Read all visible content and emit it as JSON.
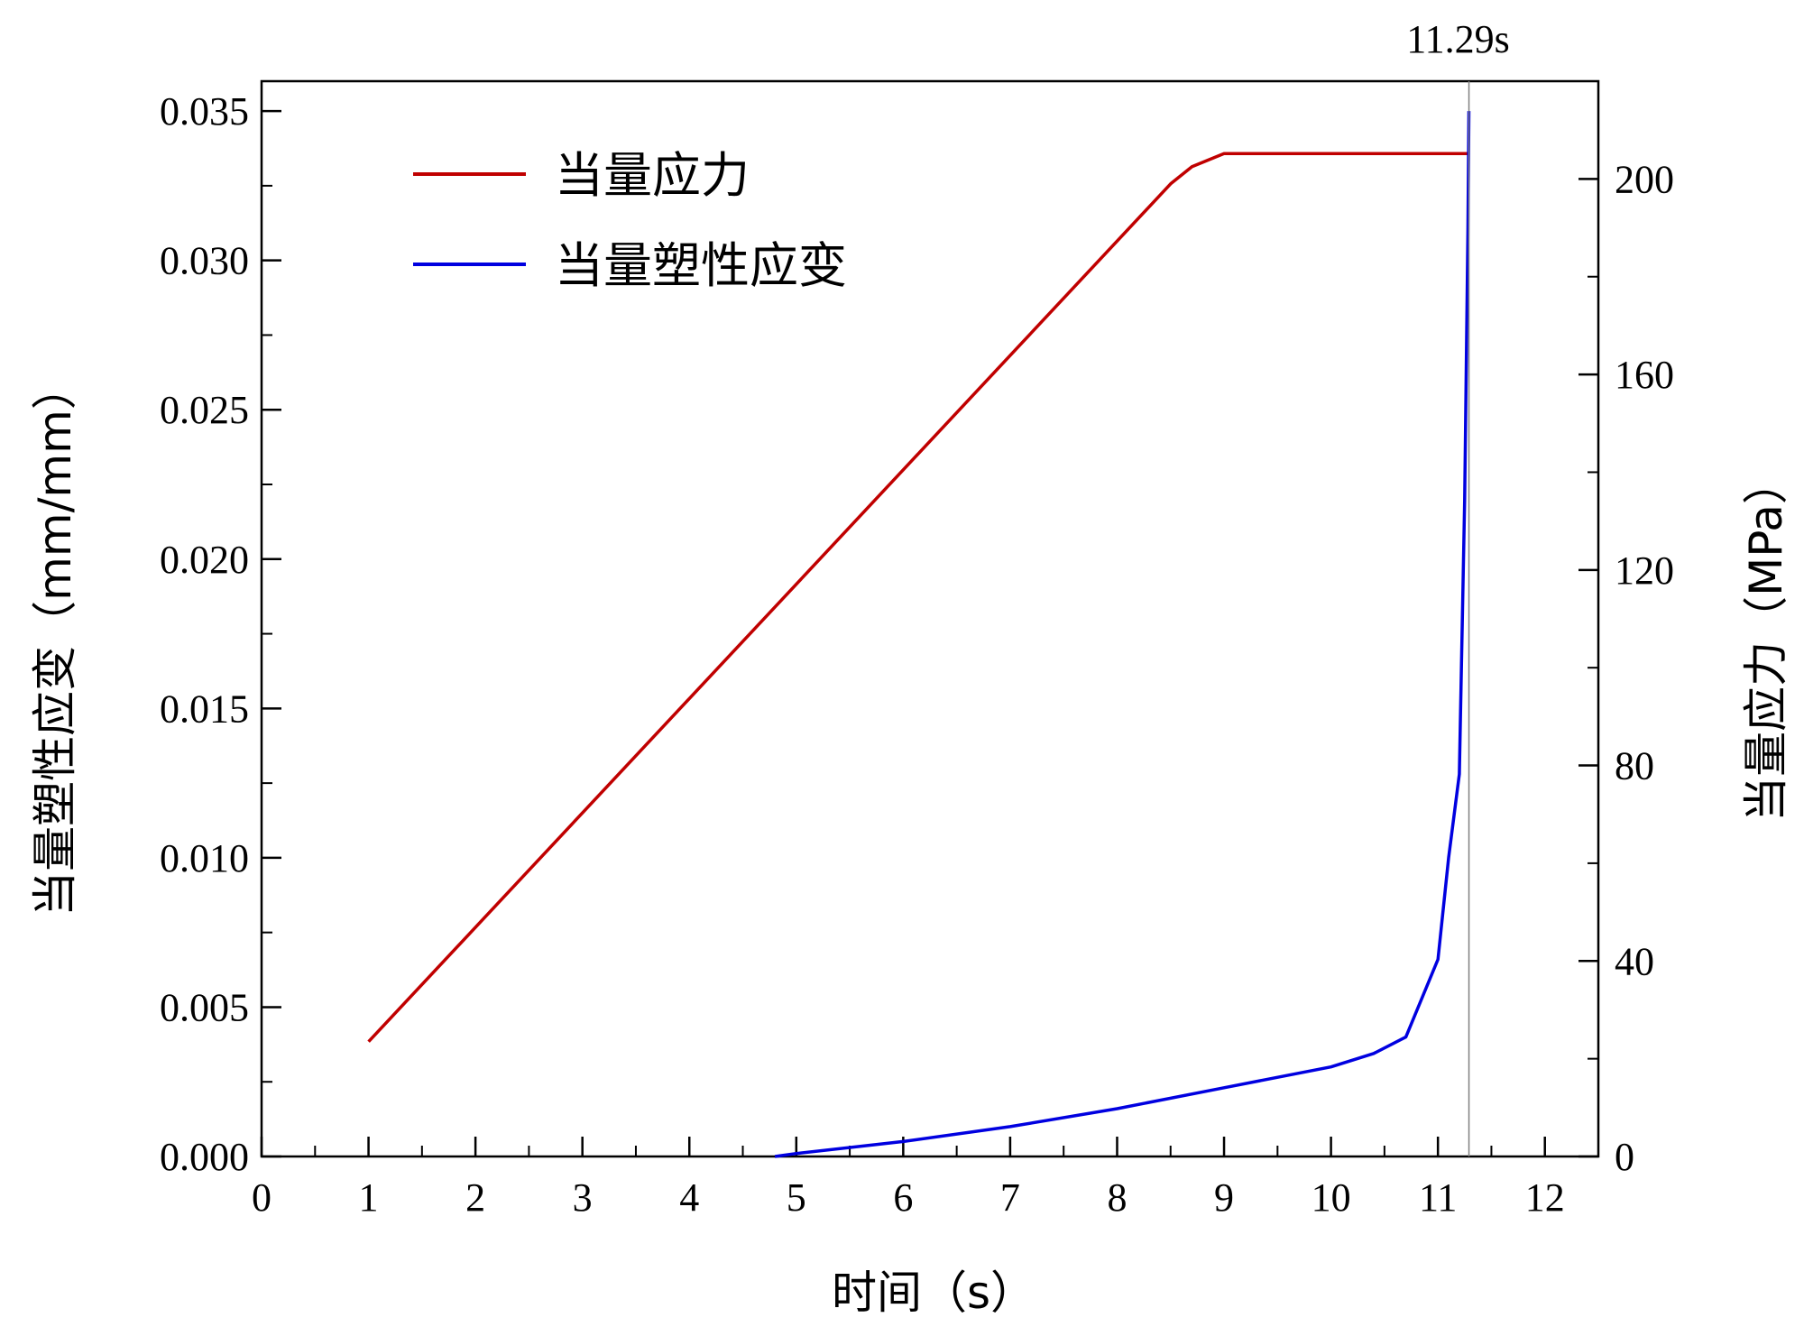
{
  "chart_data": {
    "type": "line",
    "xlabel": "时间（s）",
    "ylabel_left": "当量塑性应变（mm/mm）",
    "ylabel_right": "当量应力（MPa）",
    "xlim": [
      0,
      12.5
    ],
    "ylim_left": [
      0,
      0.036
    ],
    "ylim_right": [
      0,
      220
    ],
    "x_ticks": [
      "0",
      "1",
      "2",
      "3",
      "4",
      "5",
      "6",
      "7",
      "8",
      "9",
      "10",
      "11",
      "12"
    ],
    "y_left_ticks": [
      "0.000",
      "0.005",
      "0.010",
      "0.015",
      "0.020",
      "0.025",
      "0.030",
      "0.035"
    ],
    "y_right_ticks": [
      "0",
      "40",
      "80",
      "120",
      "160",
      "200"
    ],
    "legend_position": "top-left",
    "grid": false,
    "annotation": {
      "label": "11.29s",
      "x": 11.29
    },
    "series": [
      {
        "name": "当量应力",
        "axis": "right",
        "color": "#c00000",
        "x": [
          1,
          8.5,
          8.7,
          9.0,
          11.29
        ],
        "y": [
          23.5,
          199,
          202.5,
          205.2,
          205.2
        ]
      },
      {
        "name": "当量塑性应变",
        "axis": "left",
        "color": "#0000e0",
        "x": [
          4.8,
          5.0,
          6.0,
          7.0,
          8.0,
          9.0,
          10.0,
          10.4,
          10.7,
          11.0,
          11.1,
          11.2,
          11.25,
          11.28,
          11.29
        ],
        "y": [
          0.0,
          0.0001,
          0.0005,
          0.001,
          0.0016,
          0.0023,
          0.003,
          0.00345,
          0.004,
          0.0066,
          0.01,
          0.0128,
          0.022,
          0.031,
          0.035
        ]
      }
    ]
  }
}
